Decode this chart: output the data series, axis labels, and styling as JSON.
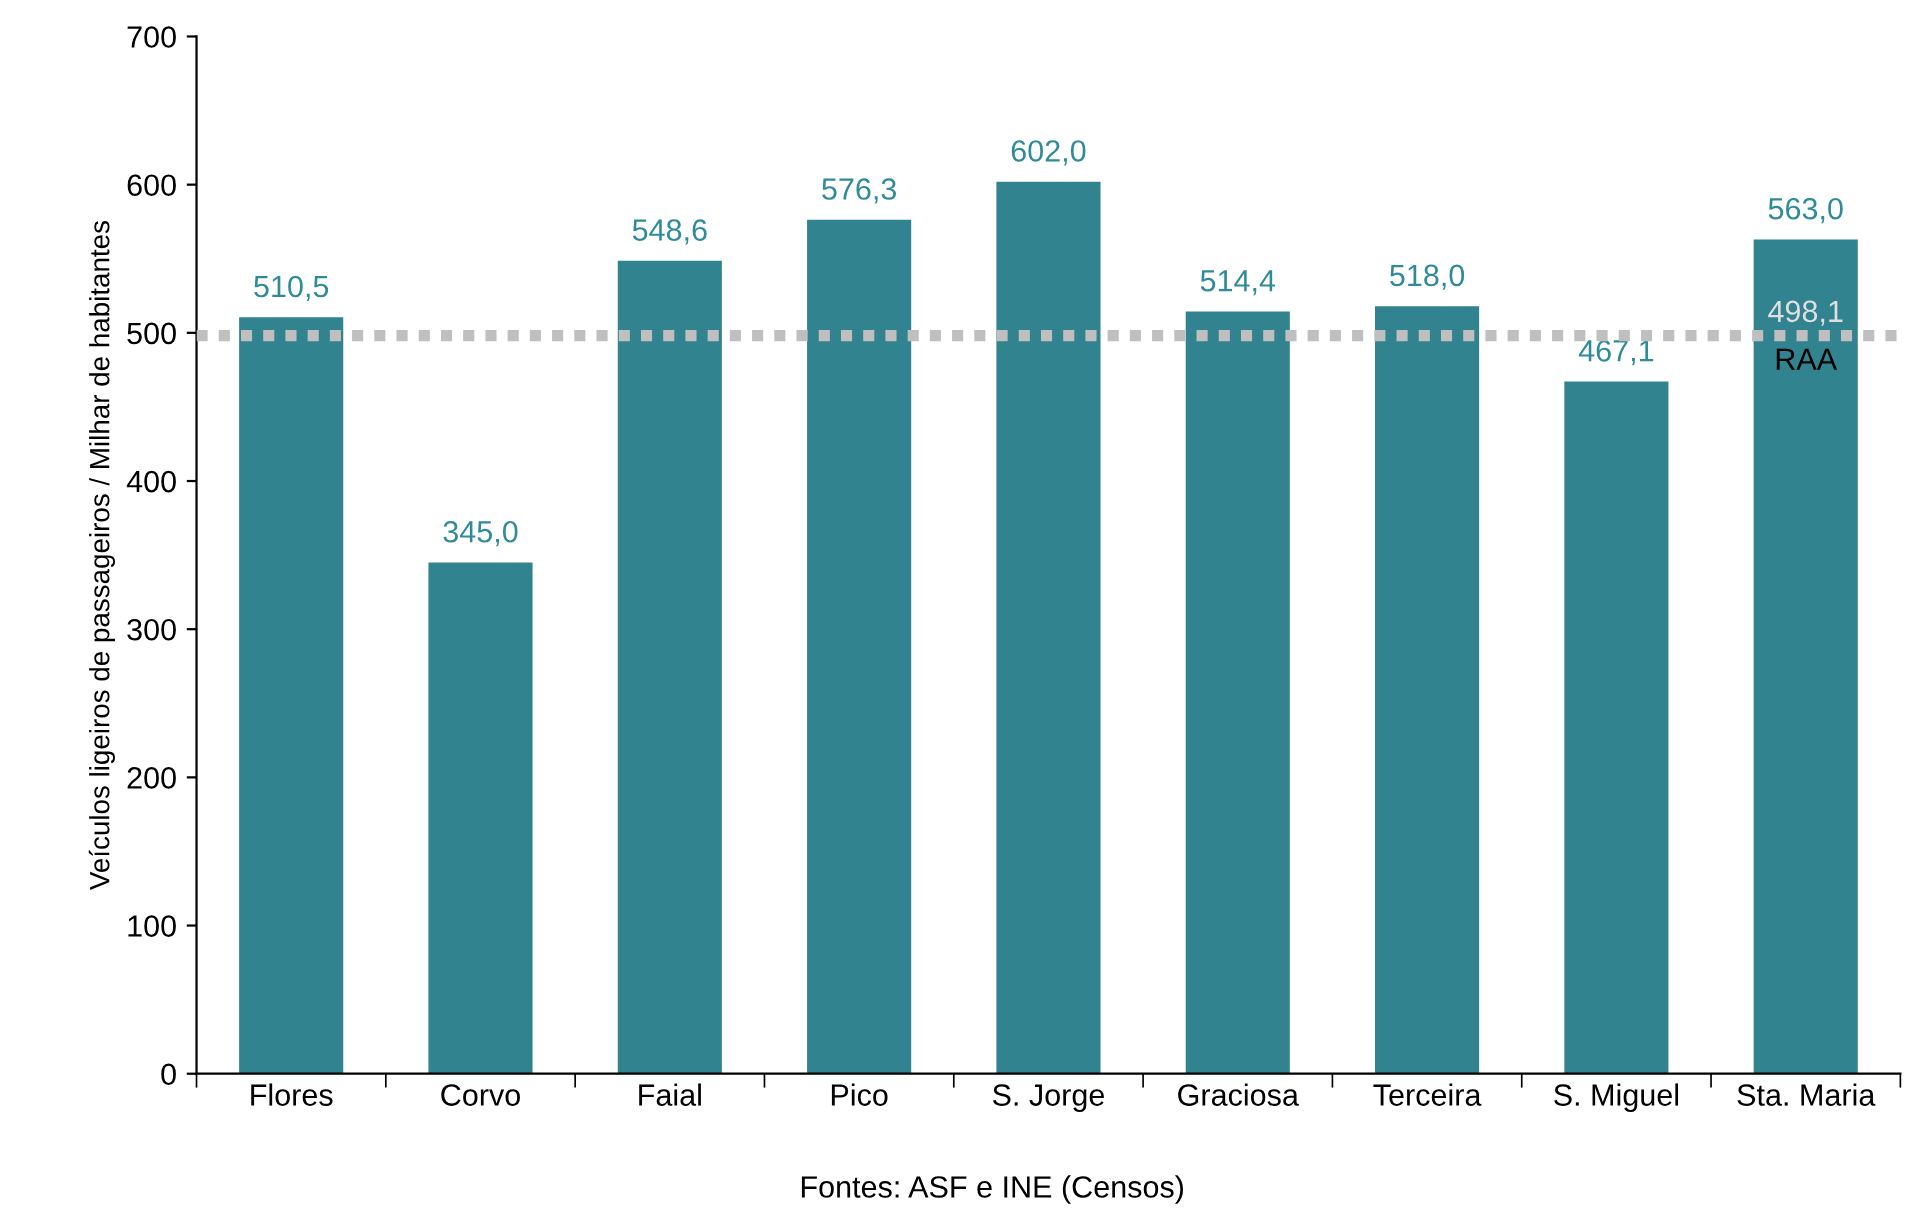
{
  "chart_data": {
    "type": "bar",
    "ylabel": "Veículos ligeiros de passageiros / Milhar de habitantes",
    "categories": [
      "Flores",
      "Corvo",
      "Faial",
      "Pico",
      "S. Jorge",
      "Graciosa",
      "Terceira",
      "S. Miguel",
      "Sta. Maria"
    ],
    "values": [
      510.5,
      345.0,
      548.6,
      576.3,
      602.0,
      514.4,
      518.0,
      467.1,
      563.0
    ],
    "value_labels": [
      "510,5",
      "345,0",
      "548,6",
      "576,3",
      "602,0",
      "514,4",
      "518,0",
      "467,1",
      "563,0"
    ],
    "color": "#31838f",
    "ylim": [
      0,
      700
    ],
    "yticks": [
      0,
      100,
      200,
      300,
      400,
      500,
      600,
      700
    ],
    "grid": false,
    "legend": false,
    "ref_lines": [
      {
        "axis": "y",
        "value": 498.1,
        "label": "RAA",
        "color": "#bfbfbf",
        "line_style": "dotted"
      }
    ],
    "annotations": [
      {
        "text": "498,1",
        "x": "Sta. Maria",
        "y": 498.1
      },
      "Fontes: ASF e INE (Censos)"
    ]
  }
}
